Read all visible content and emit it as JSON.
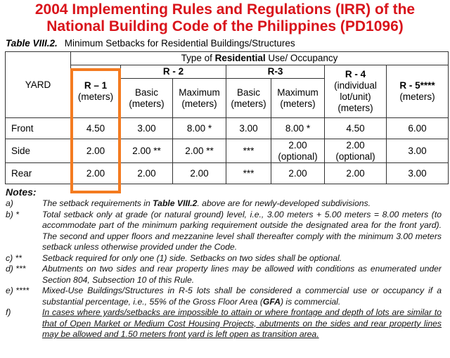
{
  "title_line1": "2004 Implementing Rules and Regulations (IRR) of the",
  "title_line2": "National Building Code of the Philippines (PD1096)",
  "table_label": "Table VIII.2.",
  "table_title": "Minimum Setbacks for Residential Buildings/Structures",
  "header": {
    "yard": "YARD",
    "type_pre": "Type of ",
    "type_bold": "Residential",
    "type_post": " Use/ Occupancy",
    "r1": "R – 1",
    "r1u": "(meters)",
    "r2": "R - 2",
    "r3": "R-3",
    "r4": "R - 4",
    "r4a": "(individual",
    "r4b": "lot/unit)",
    "r4u": "(meters)",
    "r5": "R - 5****",
    "r5u": "(meters)",
    "basic": "Basic",
    "maximum": "Maximum",
    "meters": "(meters)"
  },
  "rows": [
    {
      "yard": "Front",
      "cells": [
        "4.50",
        "3.00",
        "8.00 *",
        "3.00",
        "8.00 *",
        "4.50",
        "6.00"
      ]
    },
    {
      "yard": "Side",
      "cells": [
        "2.00",
        "2.00 **",
        "2.00 **",
        "***",
        "2.00\n(optional)",
        "2.00\n(optional)",
        "3.00"
      ]
    },
    {
      "yard": "Rear",
      "cells": [
        "2.00",
        "2.00",
        "2.00",
        "***",
        "2.00",
        "2.00",
        "3.00"
      ]
    }
  ],
  "notes_heading": "Notes:",
  "notes": [
    {
      "label": "a)",
      "pre": "The setback requirements in ",
      "bold": "Table VIII.2",
      "post": ". above are for newly-developed subdivisions."
    },
    {
      "label": "b)   *",
      "text": "Total setback only at grade (or natural ground) level, i.e., 3.00 meters + 5.00 meters = 8.00 meters (to accommodate part of the minimum parking requirement outside the designated area for the front yard). The second and upper floors and mezzanine level shall thereafter comply with the minimum 3.00 meters setback unless otherwise provided under the Code."
    },
    {
      "label": "c)   **",
      "text": "Setback required for only one (1) side.  Setbacks on two sides shall be optional."
    },
    {
      "label": "d) ***",
      "text": "Abutments on two sides and rear property lines may be allowed with conditions as enumerated under Section 804, Subsection 10 of this Rule."
    },
    {
      "label": "e) ****",
      "pre": "Mixed-Use Buildings/Structures in R-5 lots shall be considered a commercial use or occupancy if a substantial percentage, i.e., 55% of the Gross Floor Area (",
      "bold": "GFA",
      "post": ") is commercial."
    },
    {
      "label": "f)",
      "text": "In cases where yards/setbacks are impossible to attain or where frontage and depth of lots are similar to that of Open Market or Medium Cost Housing Projects, abutments on the sides and rear property lines may be allowed and 1.50 meters front yard is left open as transition area."
    }
  ],
  "highlight_color": "#f47b20"
}
